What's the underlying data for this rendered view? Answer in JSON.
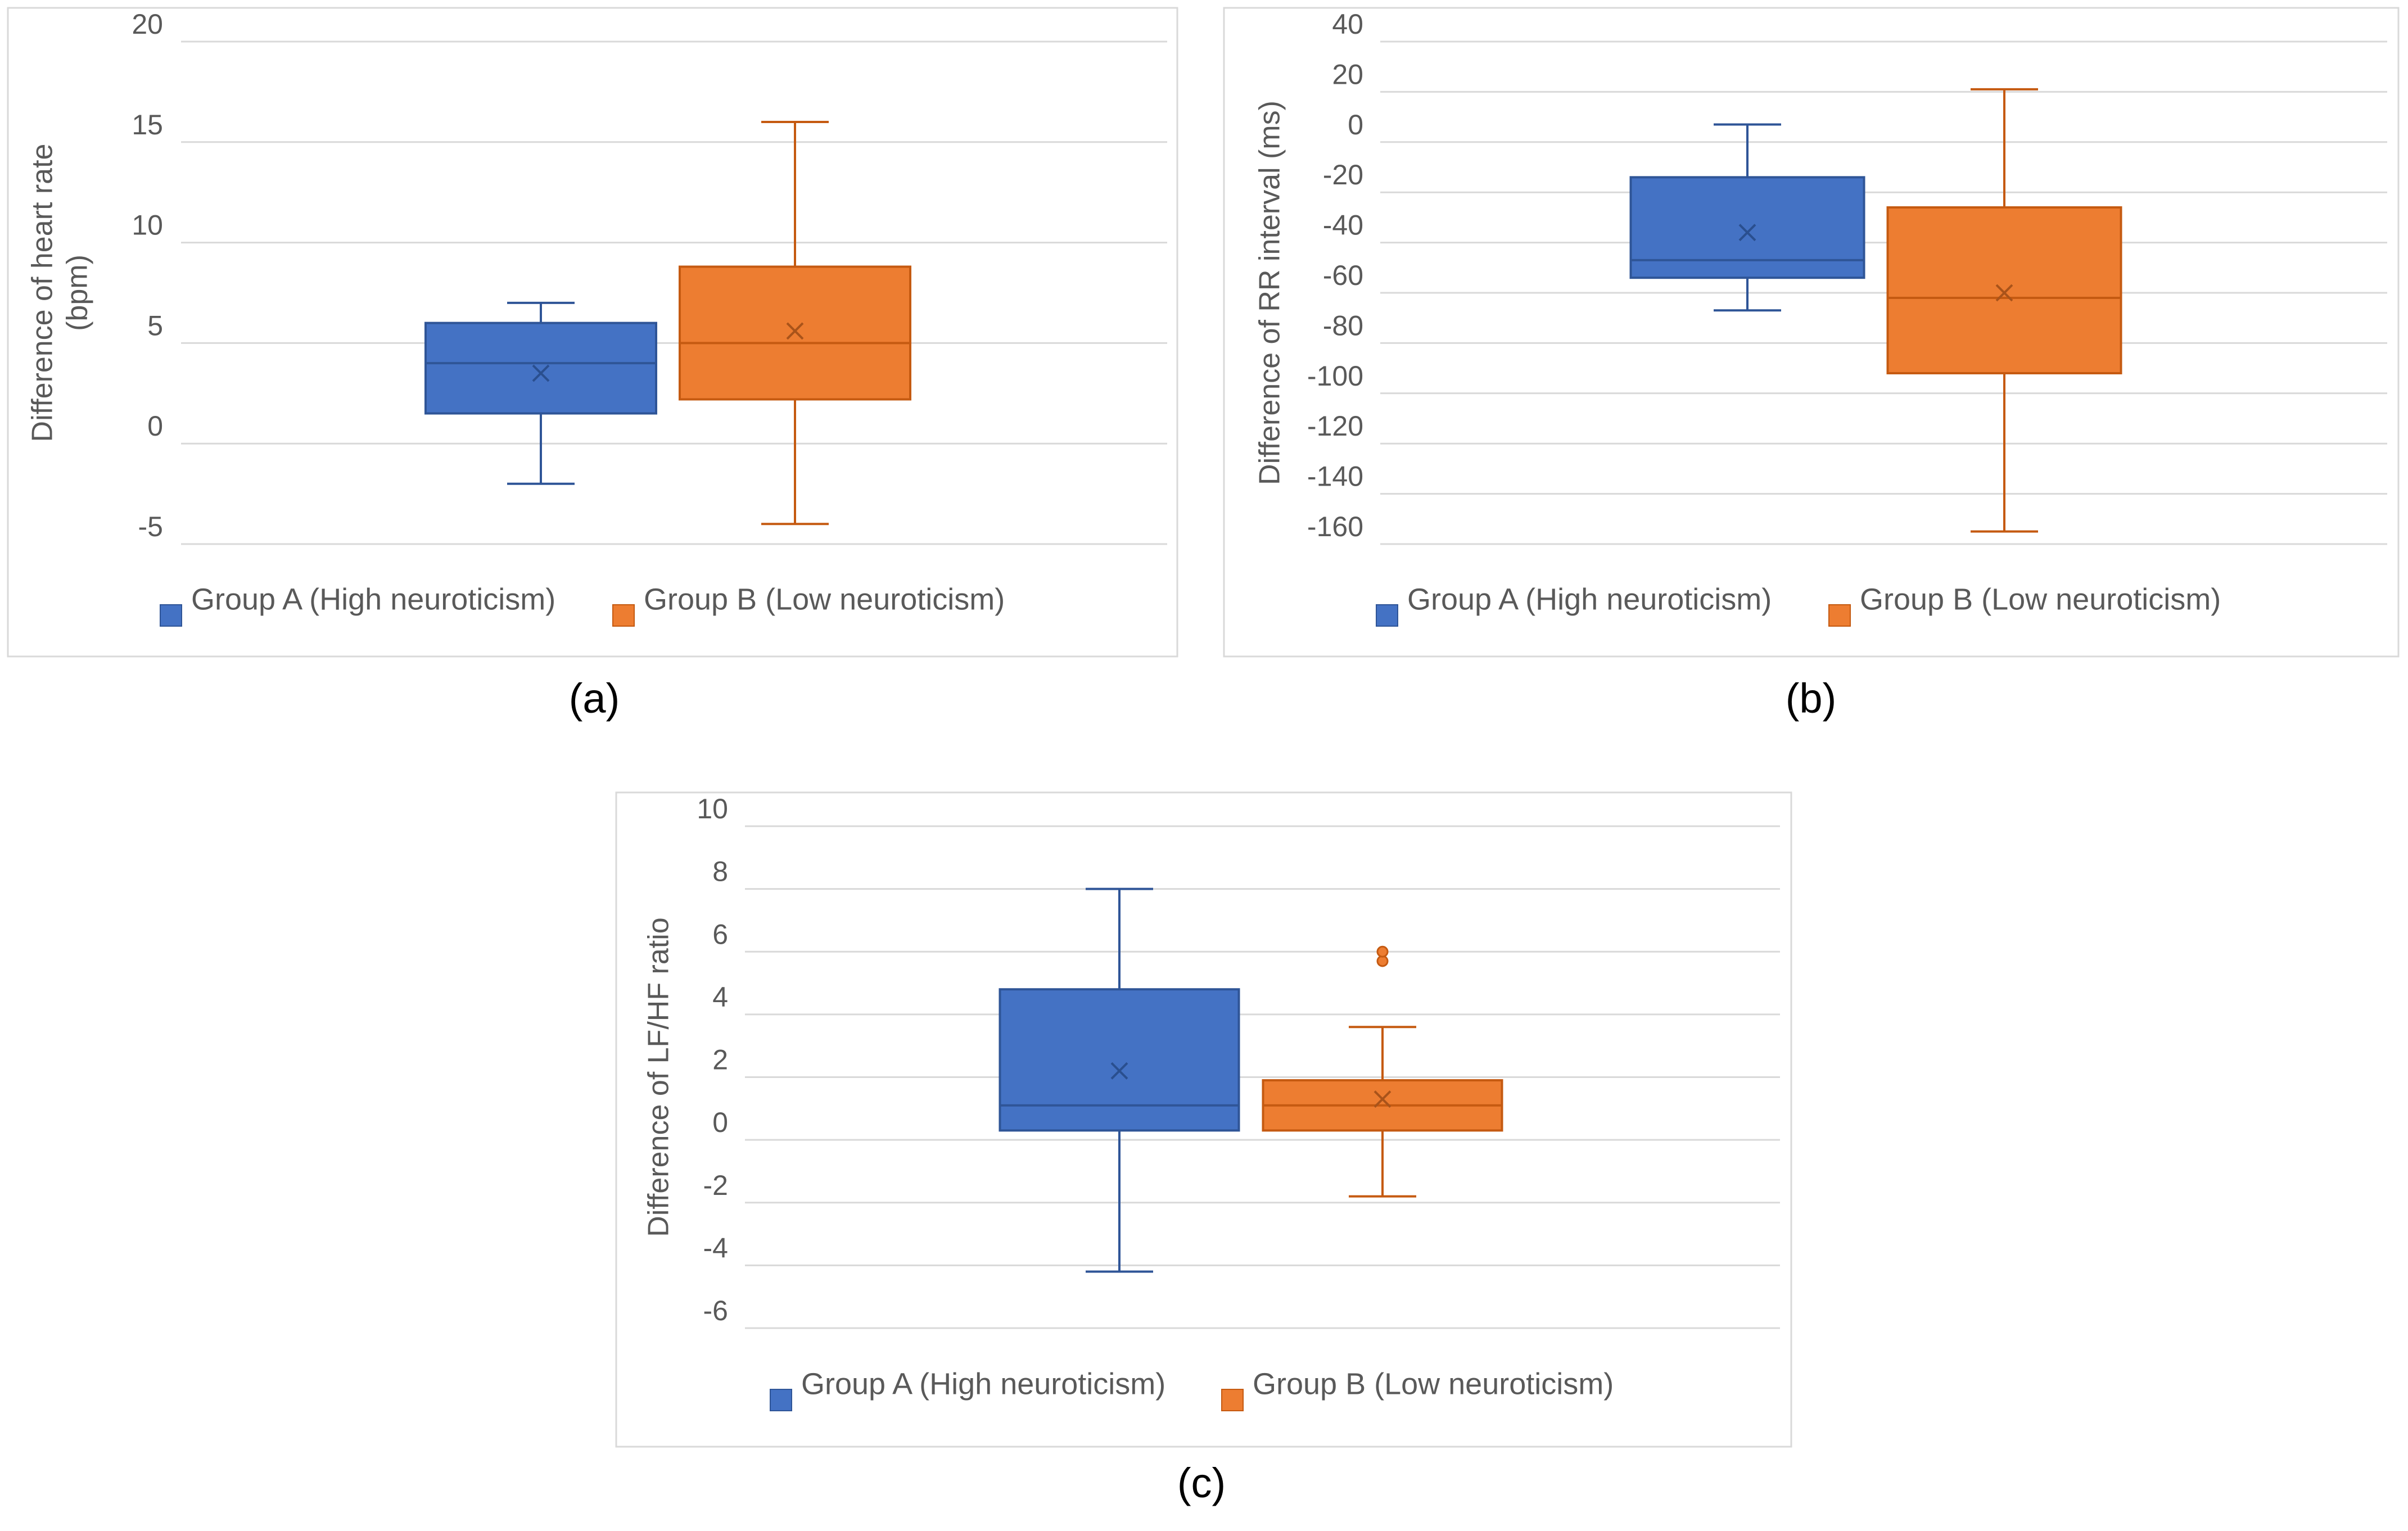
{
  "colors": {
    "group_a_fill": "#4472C4",
    "group_a_stroke": "#2F5597",
    "group_b_fill": "#ED7D31",
    "group_b_stroke": "#C55A11",
    "gridline": "#d9d9d9",
    "frame": "#d9d9d9",
    "text": "#595959"
  },
  "chart_data": [
    {
      "type": "box",
      "caption": "(a)",
      "title": "",
      "xlabel": "",
      "ylabel": [
        "Difference of heart rate",
        "(bpm)"
      ],
      "ylim": [
        -5,
        20
      ],
      "y_ticks": [
        -5,
        0,
        5,
        10,
        15,
        20
      ],
      "y_tick_labels": [
        "-5",
        "0",
        "5",
        "10",
        "15",
        "20"
      ],
      "grid": true,
      "legend": [
        "Group A (High neuroticism)",
        "Group B (Low neuroticism)"
      ],
      "legend_position": "bottom",
      "series": [
        {
          "name": "Group A (High neuroticism)",
          "whisker_low": -2,
          "q1": 1.5,
          "median": 4,
          "q3": 6,
          "whisker_high": 7,
          "mean": 3.5,
          "outliers": []
        },
        {
          "name": "Group B (Low neuroticism)",
          "whisker_low": -4,
          "q1": 2.2,
          "median": 5,
          "q3": 8.8,
          "whisker_high": 16,
          "mean": 5.6,
          "outliers": []
        }
      ]
    },
    {
      "type": "box",
      "caption": "(b)",
      "title": "",
      "xlabel": "",
      "ylabel": [
        "Difference of RR interval (ms)"
      ],
      "ylim": [
        -160,
        40
      ],
      "y_ticks": [
        -160,
        -140,
        -120,
        -100,
        -80,
        -60,
        -40,
        -20,
        0,
        20,
        40
      ],
      "y_tick_labels": [
        "-160",
        "-140",
        "-120",
        "-100",
        "-80",
        "-60",
        "-40",
        "-20",
        "0",
        "20",
        "40"
      ],
      "grid": true,
      "legend": [
        "Group A (High neuroticism)",
        "Group B (Low neuroticism)"
      ],
      "legend_position": "bottom",
      "series": [
        {
          "name": "Group A (High neuroticism)",
          "whisker_low": -67,
          "q1": -54,
          "median": -47,
          "q3": -14,
          "whisker_high": 7,
          "mean": -36,
          "outliers": []
        },
        {
          "name": "Group B (Low neuroticism)",
          "whisker_low": -155,
          "q1": -92,
          "median": -62,
          "q3": -26,
          "whisker_high": 21,
          "mean": -60,
          "outliers": []
        }
      ]
    },
    {
      "type": "box",
      "caption": "(c)",
      "title": "",
      "xlabel": "",
      "ylabel": [
        "Difference of LF/HF ratio"
      ],
      "ylim": [
        -6,
        10
      ],
      "y_ticks": [
        -6,
        -4,
        -2,
        0,
        2,
        4,
        6,
        8,
        10
      ],
      "y_tick_labels": [
        "-6",
        "-4",
        "-2",
        "0",
        "2",
        "4",
        "6",
        "8",
        "10"
      ],
      "grid": true,
      "legend": [
        "Group A (High neuroticism)",
        "Group B (Low neuroticism)"
      ],
      "legend_position": "bottom",
      "series": [
        {
          "name": "Group A (High neuroticism)",
          "whisker_low": -4.2,
          "q1": 0.3,
          "median": 1.1,
          "q3": 4.8,
          "whisker_high": 8,
          "mean": 2.2,
          "outliers": []
        },
        {
          "name": "Group B (Low neuroticism)",
          "whisker_low": -1.8,
          "q1": 0.3,
          "median": 1.1,
          "q3": 1.9,
          "whisker_high": 3.6,
          "mean": 1.3,
          "outliers": [
            5.7,
            6
          ]
        }
      ]
    }
  ]
}
